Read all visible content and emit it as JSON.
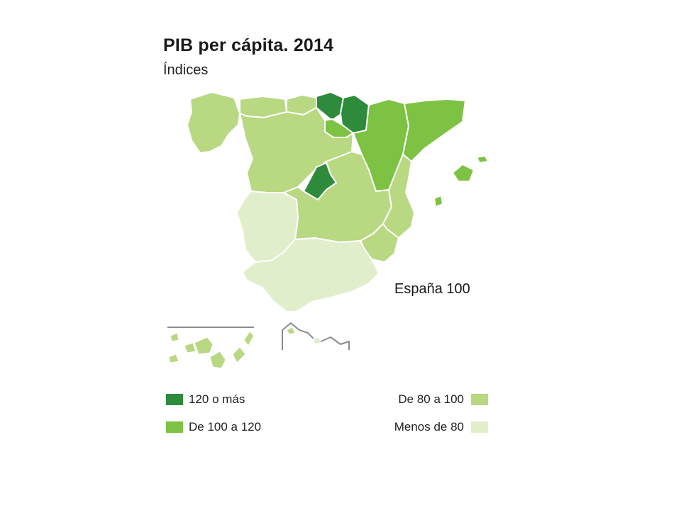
{
  "header": {
    "title": "PIB per cápita. 2014",
    "subtitle": "Índices"
  },
  "map": {
    "reference_note": "España 100"
  },
  "legend": {
    "items": [
      {
        "label": "120 o más",
        "color": "#2e8b3c"
      },
      {
        "label": "De 100 a 120",
        "color": "#7dc242"
      },
      {
        "label": "De 80 a 100",
        "color": "#b8d882"
      },
      {
        "label": "Menos de 80",
        "color": "#e1eecb"
      }
    ]
  },
  "regions": [
    {
      "name": "Galicia",
      "class": "De 80 a 100"
    },
    {
      "name": "Asturias",
      "class": "De 80 a 100"
    },
    {
      "name": "Cantabria",
      "class": "De 80 a 100"
    },
    {
      "name": "País Vasco",
      "class": "120 o más"
    },
    {
      "name": "Navarra",
      "class": "120 o más"
    },
    {
      "name": "La Rioja",
      "class": "De 100 a 120"
    },
    {
      "name": "Aragón",
      "class": "De 100 a 120"
    },
    {
      "name": "Cataluña",
      "class": "De 100 a 120"
    },
    {
      "name": "Castilla y León",
      "class": "De 80 a 100"
    },
    {
      "name": "Madrid",
      "class": "120 o más"
    },
    {
      "name": "Castilla-La Mancha",
      "class": "De 80 a 100"
    },
    {
      "name": "Comunitat Valenciana",
      "class": "De 80 a 100"
    },
    {
      "name": "Región de Murcia",
      "class": "De 80 a 100"
    },
    {
      "name": "Extremadura",
      "class": "Menos de 80"
    },
    {
      "name": "Andalucía",
      "class": "Menos de 80"
    },
    {
      "name": "Illes Balears",
      "class": "De 100 a 120"
    },
    {
      "name": "Canarias",
      "class": "De 80 a 100"
    },
    {
      "name": "Ceuta",
      "class": "De 80 a 100"
    },
    {
      "name": "Melilla",
      "class": "Menos de 80"
    }
  ]
}
